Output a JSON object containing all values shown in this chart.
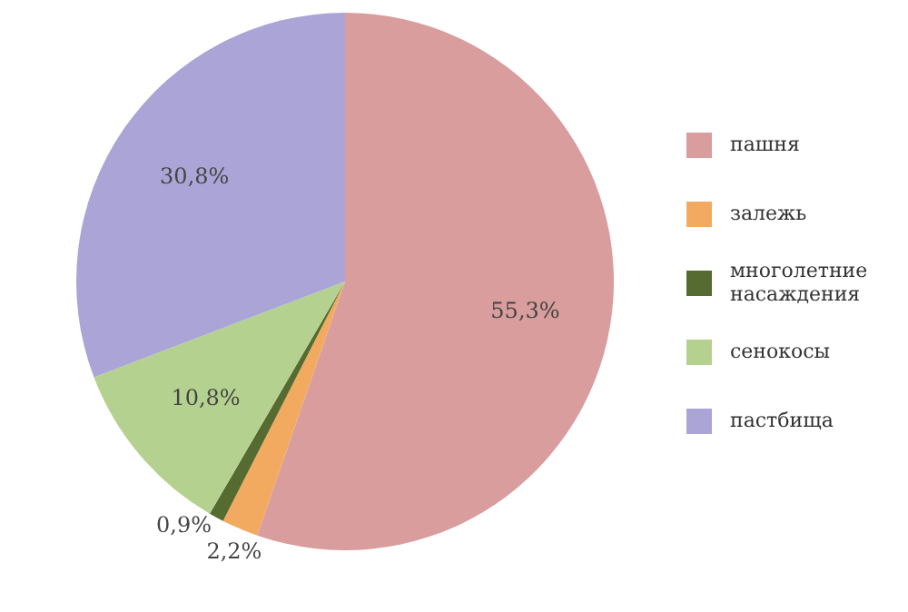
{
  "chart_data": {
    "type": "pie",
    "categories": [
      "пашня",
      "залежь",
      "многолетние насаждения",
      "сенокосы",
      "пастбища"
    ],
    "values": [
      55.3,
      2.2,
      0.9,
      10.8,
      30.8
    ],
    "colors": [
      "#d99d9d",
      "#f2aa60",
      "#556b2f",
      "#b5d18f",
      "#aaa5d6"
    ],
    "value_labels": [
      "55,3%",
      "2,2%",
      "0,9%",
      "10,8%",
      "30,8%"
    ],
    "legend": "right"
  }
}
